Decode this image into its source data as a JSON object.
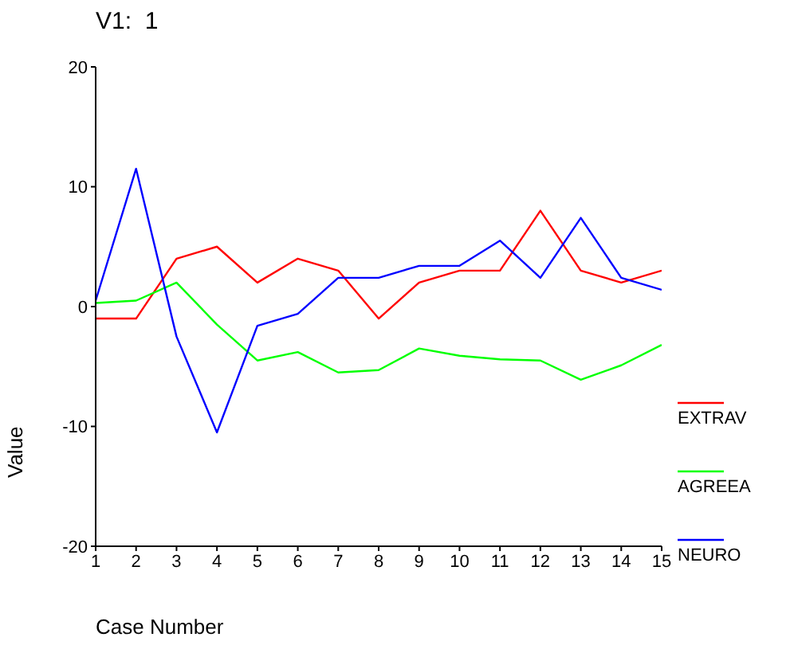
{
  "chart_data": {
    "type": "line",
    "title": "V1:  1",
    "xlabel": "Case Number",
    "ylabel": "Value",
    "x": [
      1,
      2,
      3,
      4,
      5,
      6,
      7,
      8,
      9,
      10,
      11,
      12,
      13,
      14,
      15
    ],
    "series": [
      {
        "name": "EXTRAV",
        "color": "#ff0000",
        "values": [
          -1,
          -1,
          4,
          5,
          2,
          4,
          3,
          -1,
          2,
          3,
          3,
          8,
          3,
          2,
          3
        ]
      },
      {
        "name": "AGREEA",
        "color": "#00ff00",
        "values": [
          0.3,
          0.5,
          2,
          -1.5,
          -4.5,
          -3.8,
          -5.5,
          -5.3,
          -3.5,
          -4.1,
          -4.4,
          -4.5,
          -6.1,
          -4.9,
          -3.2
        ]
      },
      {
        "name": "NEURO",
        "color": "#0000ff",
        "values": [
          0.5,
          11.5,
          -2.5,
          -10.5,
          -1.6,
          -0.6,
          2.4,
          2.4,
          3.4,
          3.4,
          5.5,
          2.4,
          7.4,
          2.4,
          1.4
        ]
      }
    ],
    "xlim": [
      1,
      15
    ],
    "xticks": [
      1,
      2,
      3,
      4,
      5,
      6,
      7,
      8,
      9,
      10,
      11,
      12,
      13,
      14,
      15
    ],
    "ylim": [
      -20,
      20
    ],
    "yticks": [
      -20,
      -10,
      0,
      10,
      20
    ],
    "grid": false,
    "legend": "right",
    "marker": "none",
    "line_style": "solid"
  }
}
